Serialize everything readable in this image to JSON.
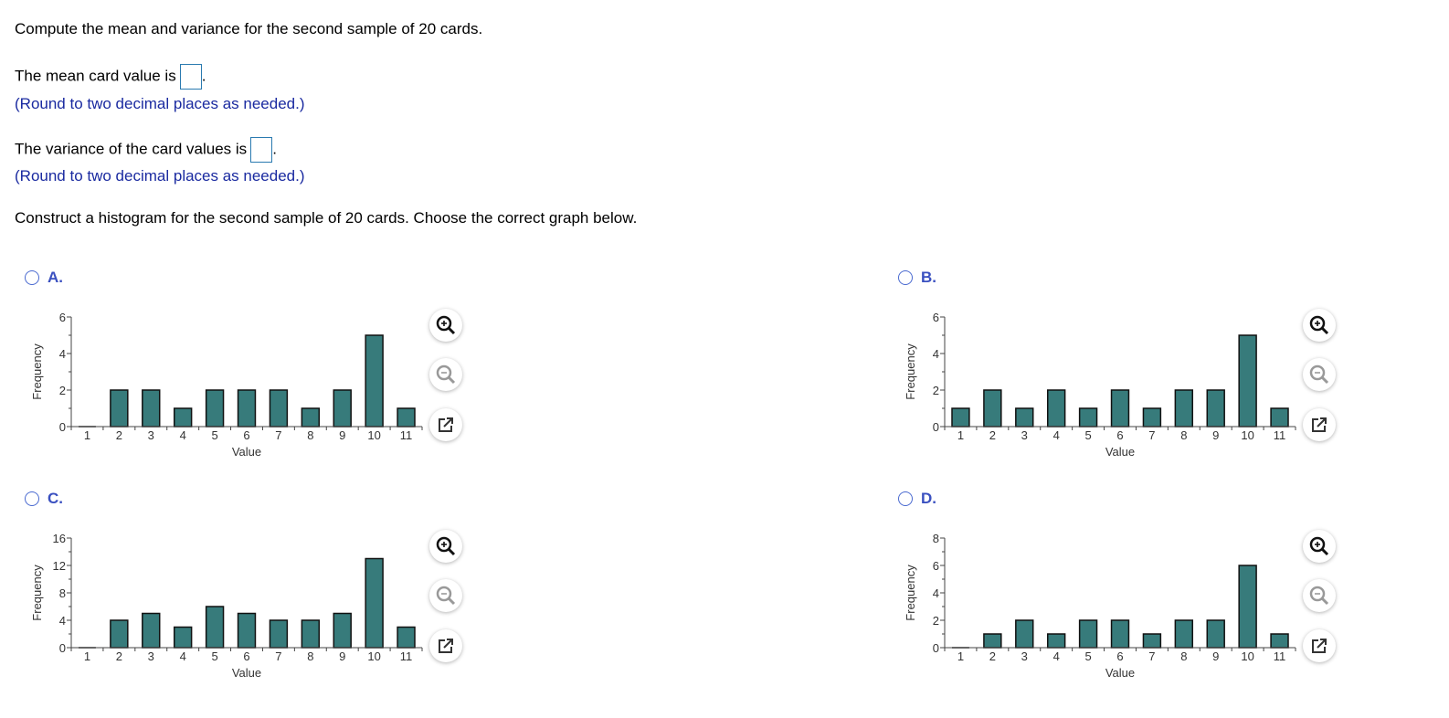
{
  "question": "Compute the mean and variance for the second sample of 20 cards.",
  "mean_prompt": "The mean card value is",
  "mean_value": "",
  "round_hint": "(Round to two decimal places as needed.)",
  "variance_prompt": "The variance of the card values is",
  "variance_value": "",
  "histogram_prompt": "Construct a histogram for the second sample of 20 cards. Choose the correct graph below.",
  "period": ".",
  "colors": {
    "bar": "#377b7b",
    "hint": "#1a2aa0",
    "option_label": "#3a50c0"
  },
  "options": [
    {
      "label": "A.",
      "selected": false
    },
    {
      "label": "B.",
      "selected": false
    },
    {
      "label": "C.",
      "selected": false
    },
    {
      "label": "D.",
      "selected": false
    }
  ],
  "chart_data": [
    {
      "type": "bar",
      "option": "A",
      "xlabel": "Value",
      "ylabel": "Frequency",
      "categories": [
        "1",
        "2",
        "3",
        "4",
        "5",
        "6",
        "7",
        "8",
        "9",
        "10",
        "11"
      ],
      "values": [
        0,
        2,
        2,
        1,
        2,
        2,
        2,
        1,
        2,
        5,
        1
      ],
      "ylim": [
        0,
        6
      ],
      "yticks": [
        0,
        2,
        4,
        6
      ],
      "grid": false
    },
    {
      "type": "bar",
      "option": "B",
      "xlabel": "Value",
      "ylabel": "Frequency",
      "categories": [
        "1",
        "2",
        "3",
        "4",
        "5",
        "6",
        "7",
        "8",
        "9",
        "10",
        "11"
      ],
      "values": [
        1,
        2,
        1,
        2,
        1,
        2,
        1,
        2,
        2,
        5,
        1
      ],
      "ylim": [
        0,
        6
      ],
      "yticks": [
        0,
        2,
        4,
        6
      ],
      "grid": false
    },
    {
      "type": "bar",
      "option": "C",
      "xlabel": "Value",
      "ylabel": "Frequency",
      "categories": [
        "1",
        "2",
        "3",
        "4",
        "5",
        "6",
        "7",
        "8",
        "9",
        "10",
        "11"
      ],
      "values": [
        0,
        4,
        5,
        3,
        6,
        5,
        4,
        4,
        5,
        13,
        3
      ],
      "ylim": [
        0,
        16
      ],
      "yticks": [
        0,
        4,
        8,
        12,
        16
      ],
      "grid": false
    },
    {
      "type": "bar",
      "option": "D",
      "xlabel": "Value",
      "ylabel": "Frequency",
      "categories": [
        "1",
        "2",
        "3",
        "4",
        "5",
        "6",
        "7",
        "8",
        "9",
        "10",
        "11"
      ],
      "values": [
        0,
        1,
        2,
        1,
        2,
        2,
        1,
        2,
        2,
        6,
        1
      ],
      "ylim": [
        0,
        8
      ],
      "yticks": [
        0,
        2,
        4,
        6,
        8
      ],
      "grid": false
    }
  ]
}
